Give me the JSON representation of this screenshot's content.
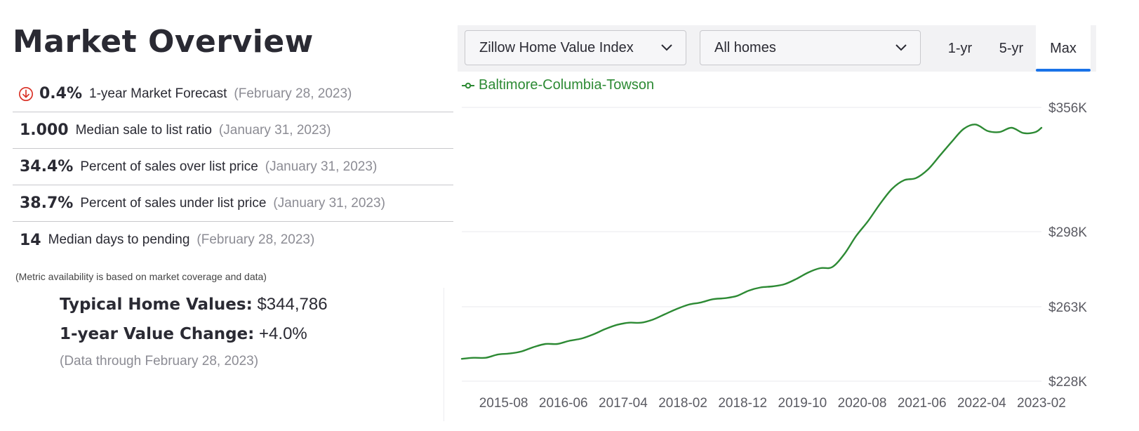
{
  "page": {
    "title": "Market Overview"
  },
  "metrics": [
    {
      "value": "0.4%",
      "label": "1-year Market Forecast",
      "date": "(February 28, 2023)",
      "icon": "down-arrow-circle-icon"
    },
    {
      "value": "1.000",
      "label": "Median sale to list ratio",
      "date": "(January 31, 2023)"
    },
    {
      "value": "34.4%",
      "label": "Percent of sales over list price",
      "date": "(January 31, 2023)"
    },
    {
      "value": "38.7%",
      "label": "Percent of sales under list price",
      "date": "(January 31, 2023)"
    },
    {
      "value": "14",
      "label": "Median days to pending",
      "date": "(February 28, 2023)"
    }
  ],
  "note": "(Metric availability is based on market coverage and data)",
  "summary": {
    "typical_label": "Typical Home Values:",
    "typical_value": "$344,786",
    "change_label": "1-year Value Change:",
    "change_value": "+4.0%",
    "data_through": "(Data through February 28, 2023)"
  },
  "controls": {
    "index_select": "Zillow Home Value Index",
    "homes_select": "All homes",
    "ranges": [
      "1-yr",
      "5-yr",
      "Max"
    ],
    "active_range": "Max"
  },
  "colors": {
    "series": "#2d8a34",
    "accent": "#1a73e8",
    "forecast_down": "#d93025"
  },
  "chart_data": {
    "type": "line",
    "legend_placement": "top-left",
    "grid": true,
    "y_ticks": [
      228,
      263,
      298,
      356
    ],
    "y_tick_labels": [
      "$228K",
      "$263K",
      "$298K",
      "$356K"
    ],
    "ylim": [
      228,
      356
    ],
    "x_tick_labels": [
      "2015-08",
      "2016-06",
      "2017-04",
      "2018-02",
      "2018-12",
      "2019-10",
      "2020-08",
      "2021-06",
      "2022-04",
      "2023-02"
    ],
    "series": [
      {
        "name": "Baltimore-Columbia-Towson",
        "x": [
          "2015-01",
          "2015-03",
          "2015-05",
          "2015-07",
          "2015-09",
          "2015-11",
          "2016-01",
          "2016-03",
          "2016-05",
          "2016-07",
          "2016-09",
          "2016-11",
          "2017-01",
          "2017-03",
          "2017-05",
          "2017-07",
          "2017-09",
          "2017-11",
          "2018-01",
          "2018-03",
          "2018-05",
          "2018-07",
          "2018-09",
          "2018-11",
          "2019-01",
          "2019-03",
          "2019-05",
          "2019-07",
          "2019-09",
          "2019-11",
          "2020-01",
          "2020-03",
          "2020-05",
          "2020-07",
          "2020-09",
          "2020-11",
          "2021-01",
          "2021-03",
          "2021-05",
          "2021-07",
          "2021-09",
          "2021-11",
          "2022-01",
          "2022-03",
          "2022-05",
          "2022-07",
          "2022-09",
          "2022-11",
          "2023-01",
          "2023-02"
        ],
        "values": [
          238.5,
          239.0,
          239.0,
          240.5,
          241.0,
          242.0,
          244.0,
          245.5,
          245.5,
          247.0,
          248.0,
          250.0,
          252.5,
          254.5,
          255.5,
          255.5,
          257.0,
          259.5,
          262.0,
          264.0,
          265.0,
          266.5,
          267.0,
          268.0,
          270.5,
          272.0,
          272.5,
          273.5,
          276.0,
          279.0,
          281.0,
          281.5,
          287.5,
          296.0,
          303.0,
          311.0,
          318.0,
          322.0,
          323.0,
          327.0,
          333.5,
          340.0,
          346.0,
          348.0,
          345.0,
          344.5,
          346.5,
          344.0,
          344.5,
          346.5
        ]
      }
    ]
  }
}
